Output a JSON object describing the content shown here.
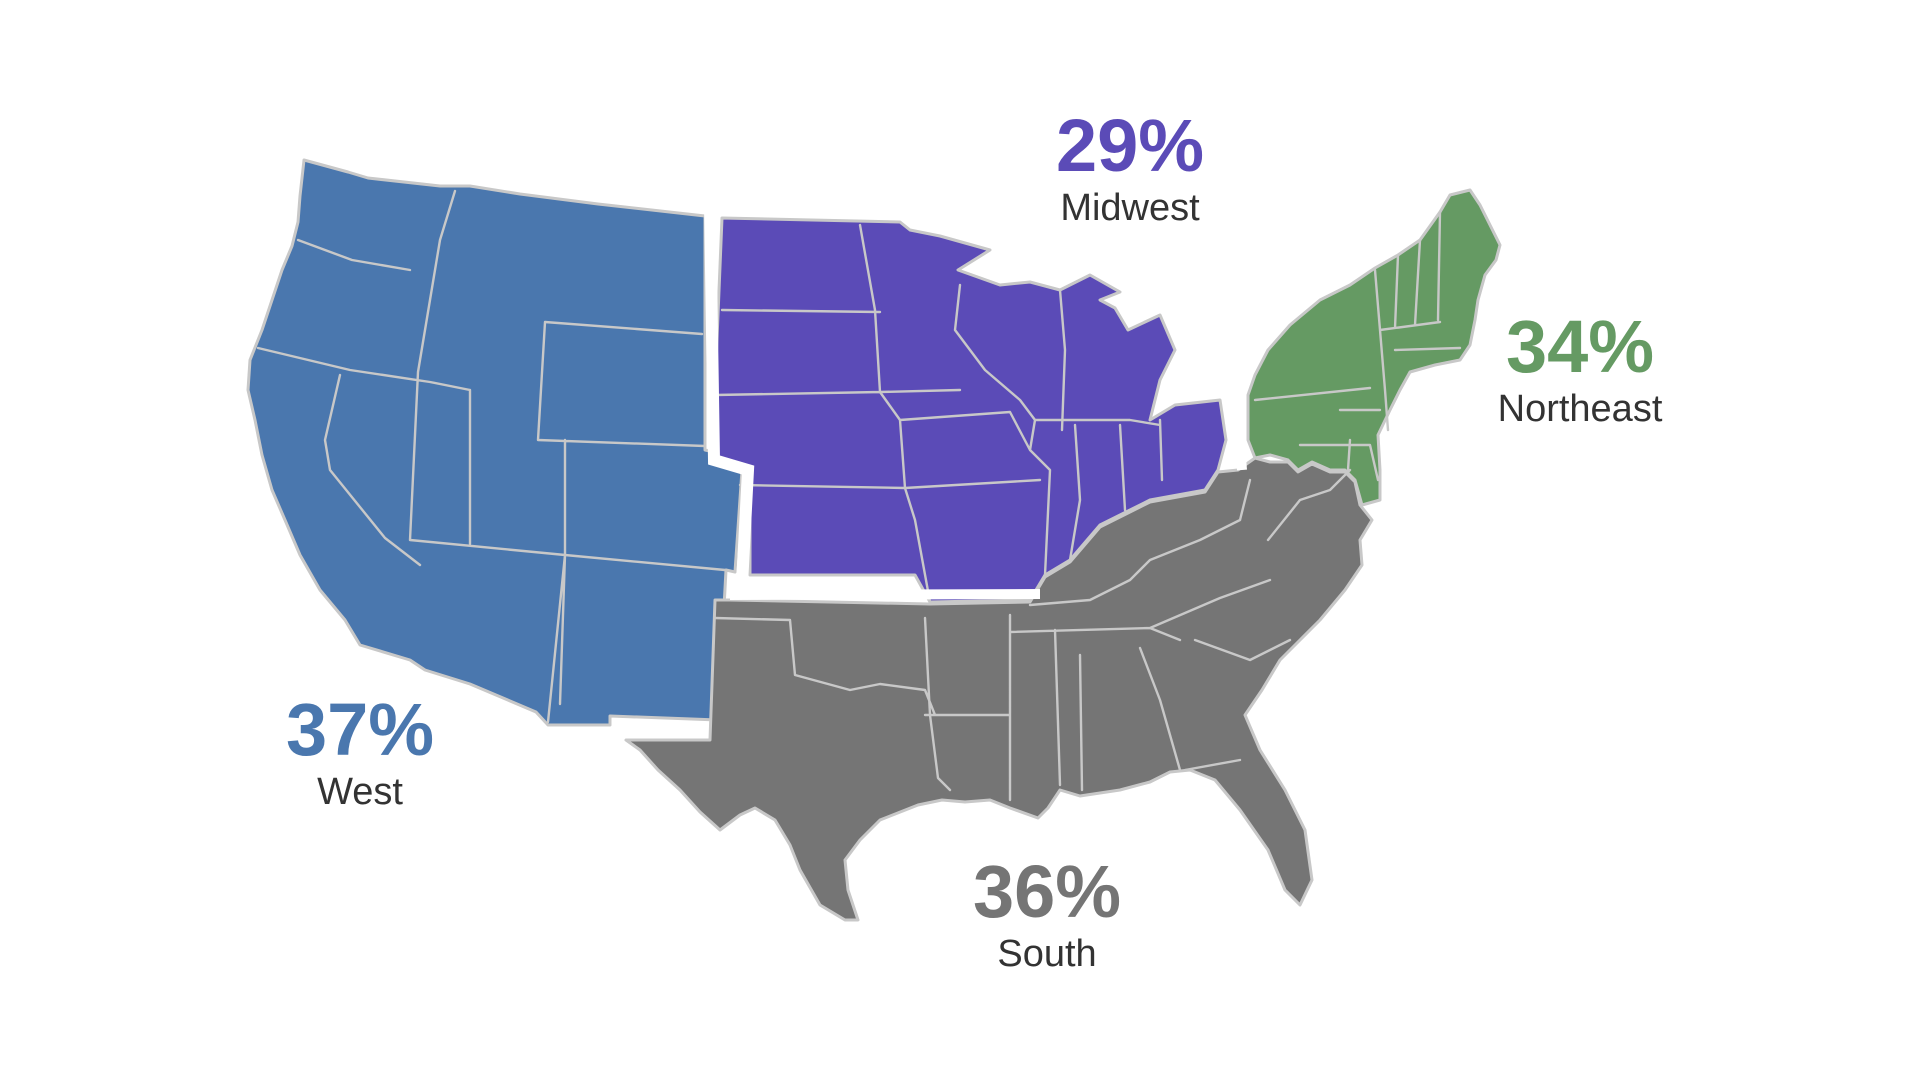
{
  "regions": {
    "west": {
      "name": "West",
      "percent": "37%",
      "color": "#4a77ae"
    },
    "midwest": {
      "name": "Midwest",
      "percent": "29%",
      "color": "#5b4bb7"
    },
    "northeast": {
      "name": "Northeast",
      "percent": "34%",
      "color": "#659a63"
    },
    "south": {
      "name": "South",
      "percent": "36%",
      "color": "#757575"
    }
  },
  "colors": {
    "label_text": "#333333",
    "state_border": "#c8c8c8",
    "background": "#ffffff"
  }
}
